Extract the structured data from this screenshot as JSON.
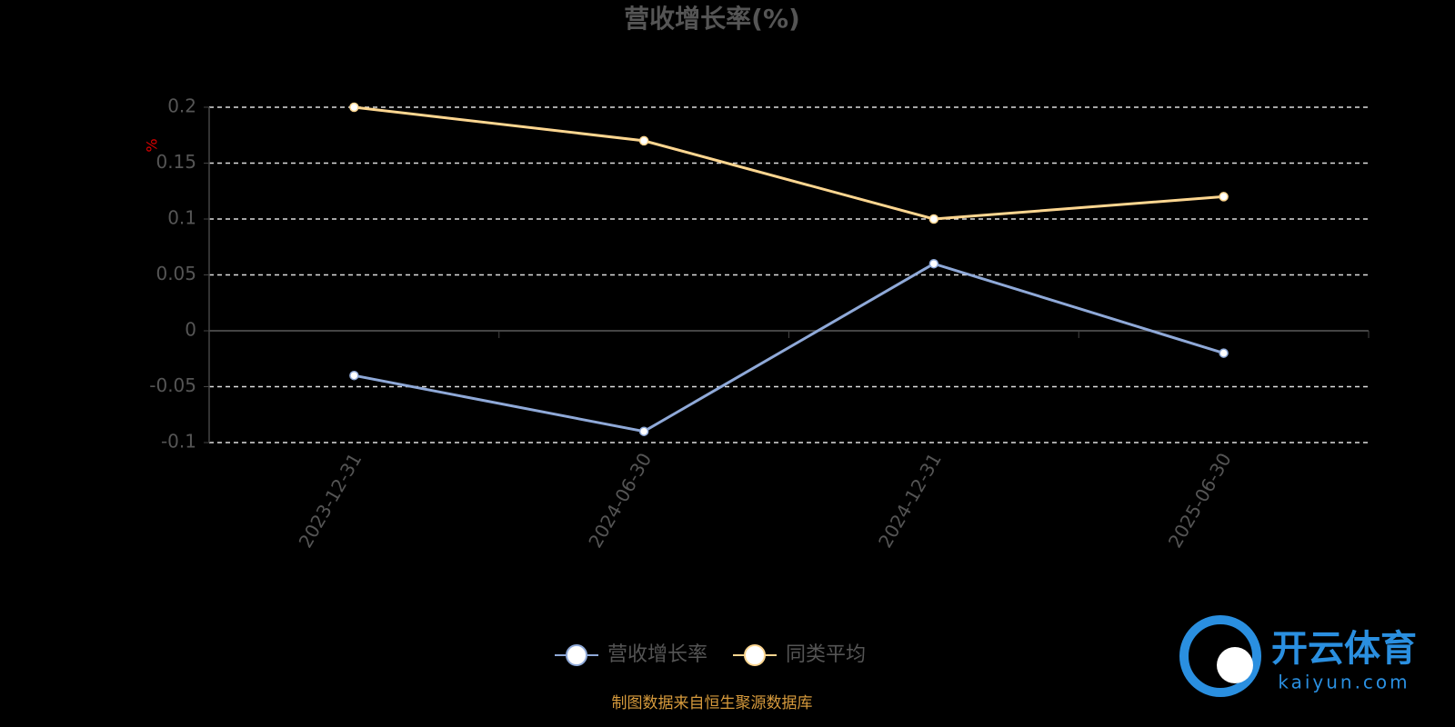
{
  "chart_data": {
    "type": "line",
    "title": "营收增长率(%)",
    "y_label": "%",
    "categories": [
      "2023-12-31",
      "2024-06-30",
      "2024-12-31",
      "2025-06-30"
    ],
    "series": [
      {
        "name": "营收增长率",
        "color": "#8fa9d8",
        "values": [
          -0.04,
          -0.09,
          0.06,
          -0.02
        ]
      },
      {
        "name": "同类平均",
        "color": "#fdd690",
        "values": [
          0.2,
          0.17,
          0.1,
          0.12
        ]
      }
    ],
    "ylim": [
      -0.1,
      0.2
    ],
    "yticks": [
      -0.1,
      -0.05,
      0,
      0.05,
      0.1,
      0.15,
      0.2
    ],
    "grid": true,
    "legend": "bottom",
    "source": "制图数据来自恒生聚源数据库",
    "watermark": {
      "name": "开云体育",
      "url": "kaiyun.com"
    }
  }
}
